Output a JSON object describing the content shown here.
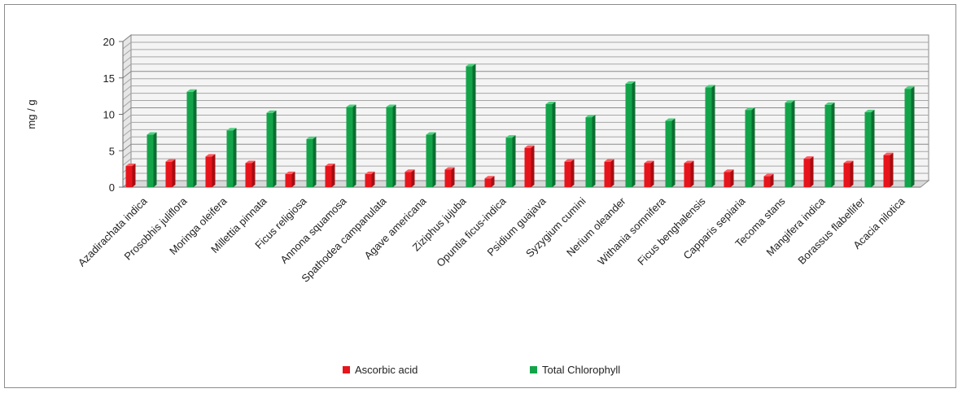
{
  "chart_data": {
    "type": "bar",
    "ylabel": "mg / g",
    "xlabel": "",
    "ylim": [
      0,
      20
    ],
    "yticks": [
      "0",
      "5",
      "10",
      "15",
      "20"
    ],
    "grid": true,
    "legend_position": "bottom",
    "categories": [
      "Azadirachata indica",
      "Prosobhis juliflora",
      "Moringa oleifera",
      "Millettia pinnata",
      "Ficus religiosa",
      "Annona squamosa",
      "Spathodea campanulata",
      "Agave americana",
      "Ziziphus jujuba",
      "Opuntia ficus-indica",
      "Psidium guajava",
      "Syzygium cumini",
      "Nerium oleander",
      "Withania somnifera",
      "Ficus benghalensis",
      "Capparis sepiaria",
      "Tecoma stans",
      "Mangifera indica",
      "Borassus flabellifer",
      "Acacia nilotica"
    ],
    "series": [
      {
        "name": "Ascorbic acid",
        "color": "#e8141b",
        "values": [
          2.9,
          3.5,
          4.2,
          3.3,
          1.8,
          2.9,
          1.8,
          2.1,
          2.4,
          1.2,
          5.4,
          3.5,
          3.5,
          3.3,
          3.3,
          2.1,
          1.5,
          3.9,
          3.3,
          4.4
        ]
      },
      {
        "name": "Total Chlorophyll",
        "color": "#13a44a",
        "values": [
          7.2,
          13.1,
          7.8,
          10.2,
          6.6,
          11.0,
          11.0,
          7.2,
          16.6,
          6.8,
          11.4,
          9.6,
          14.2,
          9.1,
          13.7,
          10.6,
          11.6,
          11.3,
          10.3,
          13.5
        ]
      }
    ]
  }
}
